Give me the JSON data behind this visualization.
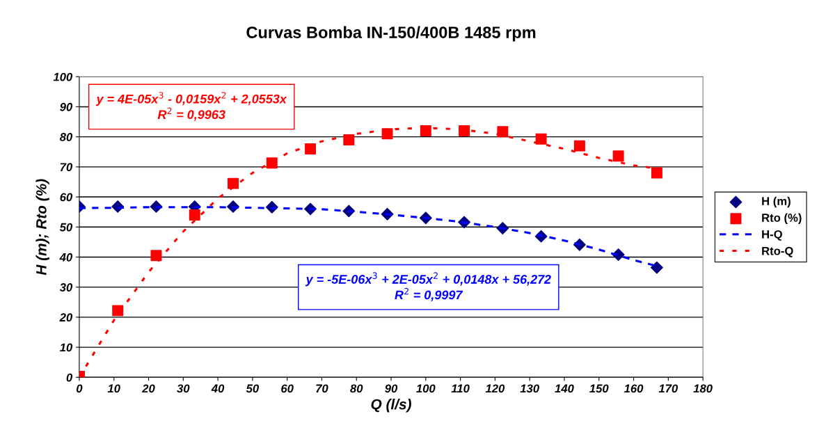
{
  "chart_data": {
    "type": "scatter",
    "title": "Curvas Bomba IN-150/400B 1485 rpm",
    "xlabel": "Q (l/s)",
    "ylabel": "H (m); Rto (%)",
    "x": [
      0,
      11.1,
      22.2,
      33.3,
      44.4,
      55.6,
      66.7,
      77.8,
      88.9,
      100,
      111.1,
      122.2,
      133.3,
      144.4,
      155.6,
      166.7
    ],
    "series": [
      {
        "name": "H (m)",
        "marker": "diamond",
        "color": "#000080",
        "values": [
          56.8,
          56.8,
          56.8,
          56.8,
          56.8,
          56.6,
          56.0,
          55.3,
          54.3,
          53.0,
          51.6,
          49.6,
          46.9,
          44.1,
          40.8,
          36.5
        ]
      },
      {
        "name": "Rto (%)",
        "marker": "square",
        "color": "#ff0000",
        "values": [
          0.3,
          22.2,
          40.5,
          54.0,
          64.5,
          71.3,
          76.0,
          79.0,
          81.0,
          82.0,
          82.0,
          81.7,
          79.3,
          77.0,
          73.6,
          68.0
        ]
      },
      {
        "name": "H-Q",
        "type": "line",
        "line_style": "dashed",
        "marker": "none",
        "color": "#0000ff",
        "x": [
          0,
          10,
          20,
          30,
          40,
          50,
          60,
          70,
          80,
          90,
          100,
          110,
          120,
          130,
          140,
          150,
          160,
          166.7
        ],
        "values": [
          56.3,
          56.4,
          56.6,
          56.6,
          56.6,
          56.4,
          56.2,
          55.9,
          55.1,
          54.1,
          53.0,
          51.7,
          50.0,
          48.0,
          45.5,
          42.5,
          39.0,
          37.0
        ]
      },
      {
        "name": "Rto-Q",
        "type": "line",
        "line_style": "dotted",
        "marker": "none",
        "color": "#ff0000",
        "x": [
          0,
          10,
          20,
          30,
          40,
          50,
          60,
          70,
          80,
          90,
          100,
          110,
          120,
          130,
          140,
          150,
          160,
          166.7
        ],
        "values": [
          0,
          19,
          35,
          48.5,
          59.5,
          68,
          74.5,
          78.5,
          81,
          82.5,
          83,
          82.5,
          81,
          78.5,
          76,
          73,
          70.5,
          69.5
        ]
      }
    ],
    "annotations": [
      "y = -5E-06x$^{3}$ + 2E-05x$^{2}$ + 0,0148x + 56,272\nR$^{2}$ = 0,9997",
      "y = 4E-05x$^{3}$ - 0,0159x$^{2}$ + 2,0553x\nR$^{2}$ = 0,9963"
    ],
    "xlim": [
      0,
      180
    ],
    "xticks": [
      0,
      10,
      20,
      30,
      40,
      50,
      60,
      70,
      80,
      90,
      100,
      110,
      120,
      130,
      140,
      150,
      160,
      170,
      180
    ],
    "ylim": [
      0,
      100
    ],
    "yticks": [
      0,
      10,
      20,
      30,
      40,
      50,
      60,
      70,
      80,
      90,
      100
    ],
    "grid": "y",
    "legend": "right"
  }
}
